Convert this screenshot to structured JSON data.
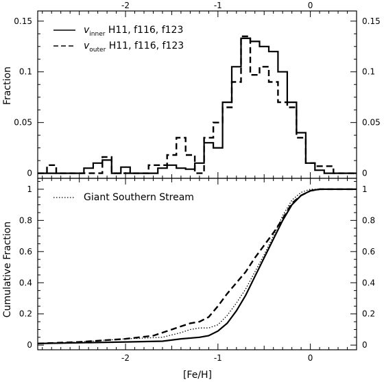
{
  "chart_data": [
    {
      "type": "line",
      "panel": "top",
      "title": "",
      "xlabel": "",
      "ylabel": "Fraction",
      "xlim": [
        -2.95,
        0.5
      ],
      "ylim": [
        -0.005,
        0.16
      ],
      "x_ticks": [
        "-2",
        "-1",
        "0"
      ],
      "x_tick_values": [
        -2,
        -1,
        0
      ],
      "y_ticks": [
        "0",
        "0.05",
        "0.1",
        "0.15"
      ],
      "y_tick_values": [
        0,
        0.05,
        0.1,
        0.15
      ],
      "legend": [
        {
          "sym": "v",
          "sub": "inner",
          "rest": " H11, f116, f123",
          "style": "solid"
        },
        {
          "sym": "v",
          "sub": "outer",
          "rest": " H11, f116, f123",
          "style": "dashed"
        }
      ],
      "series": [
        {
          "name": "v_inner H11, f116, f123",
          "style": "solid",
          "step_x": [
            -2.95,
            -2.85,
            -2.75,
            -2.65,
            -2.55,
            -2.45,
            -2.35,
            -2.25,
            -2.15,
            -2.05,
            -1.95,
            -1.85,
            -1.75,
            -1.65,
            -1.55,
            -1.45,
            -1.35,
            -1.25,
            -1.15,
            -1.05,
            -0.95,
            -0.85,
            -0.75,
            -0.65,
            -0.55,
            -0.45,
            -0.35,
            -0.25,
            -0.15,
            -0.05,
            0.05,
            0.15,
            0.25,
            0.35,
            0.45,
            0.5
          ],
          "values": [
            0,
            0,
            0,
            0,
            0,
            0.005,
            0.01,
            0.013,
            0,
            0.006,
            0,
            0,
            0,
            0.005,
            0.008,
            0.005,
            0.004,
            0.01,
            0.03,
            0.025,
            0.07,
            0.105,
            0.133,
            0.13,
            0.125,
            0.12,
            0.1,
            0.07,
            0.04,
            0.01,
            0.003,
            0,
            0,
            0,
            0
          ]
        },
        {
          "name": "v_outer H11, f116, f123",
          "style": "dashed",
          "step_x": [
            -2.95,
            -2.85,
            -2.75,
            -2.65,
            -2.55,
            -2.45,
            -2.35,
            -2.25,
            -2.15,
            -2.05,
            -1.95,
            -1.85,
            -1.75,
            -1.65,
            -1.55,
            -1.45,
            -1.35,
            -1.25,
            -1.15,
            -1.05,
            -0.95,
            -0.85,
            -0.75,
            -0.65,
            -0.55,
            -0.45,
            -0.35,
            -0.25,
            -0.15,
            -0.05,
            0.05,
            0.15,
            0.25,
            0.35,
            0.45,
            0.5
          ],
          "values": [
            0,
            0.008,
            0,
            0,
            0,
            0,
            0,
            0.016,
            0,
            0,
            0,
            0,
            0.008,
            0.008,
            0.018,
            0.035,
            0.018,
            0,
            0.035,
            0.05,
            0.065,
            0.09,
            0.135,
            0.097,
            0.105,
            0.09,
            0.07,
            0.065,
            0.035,
            0.01,
            0.007,
            0.007,
            0,
            0,
            0
          ]
        }
      ]
    },
    {
      "type": "line",
      "panel": "bottom",
      "title": "",
      "xlabel": "[Fe/H]",
      "ylabel": "Cumulative Fraction",
      "xlim": [
        -2.95,
        0.5
      ],
      "ylim": [
        -0.03,
        1.07
      ],
      "x_ticks": [
        "-2",
        "-1",
        "0"
      ],
      "x_tick_values": [
        -2,
        -1,
        0
      ],
      "y_ticks": [
        "0",
        "0.2",
        "0.4",
        "0.6",
        "0.8",
        "1"
      ],
      "y_tick_values": [
        0,
        0.2,
        0.4,
        0.6,
        0.8,
        1
      ],
      "legend": [
        {
          "label": "Giant Southern Stream",
          "style": "dotted"
        }
      ],
      "series": [
        {
          "name": "v_inner H11, f116, f123",
          "style": "solid",
          "x": [
            -2.95,
            -2.5,
            -2.0,
            -1.6,
            -1.4,
            -1.2,
            -1.1,
            -1.0,
            -0.9,
            -0.8,
            -0.7,
            -0.6,
            -0.5,
            -0.4,
            -0.3,
            -0.2,
            -0.1,
            0.0,
            0.1,
            0.2,
            0.5
          ],
          "y": [
            0.01,
            0.015,
            0.02,
            0.025,
            0.04,
            0.05,
            0.06,
            0.09,
            0.14,
            0.22,
            0.32,
            0.44,
            0.56,
            0.68,
            0.8,
            0.9,
            0.96,
            0.99,
            1.0,
            1.0,
            1.0
          ]
        },
        {
          "name": "v_outer H11, f116, f123",
          "style": "dashed",
          "x": [
            -2.95,
            -2.5,
            -2.0,
            -1.7,
            -1.5,
            -1.4,
            -1.3,
            -1.2,
            -1.1,
            -1.0,
            -0.9,
            -0.8,
            -0.7,
            -0.6,
            -0.5,
            -0.4,
            -0.3,
            -0.2,
            -0.1,
            0.0,
            0.1,
            0.2,
            0.5
          ],
          "y": [
            0.01,
            0.02,
            0.04,
            0.06,
            0.1,
            0.12,
            0.14,
            0.15,
            0.18,
            0.25,
            0.33,
            0.4,
            0.47,
            0.56,
            0.64,
            0.72,
            0.81,
            0.91,
            0.96,
            0.99,
            1.0,
            1.0,
            1.0
          ]
        },
        {
          "name": "Giant Southern Stream",
          "style": "dotted",
          "x": [
            -2.95,
            -2.5,
            -2.0,
            -1.6,
            -1.4,
            -1.3,
            -1.2,
            -1.1,
            -1.0,
            -0.9,
            -0.8,
            -0.7,
            -0.6,
            -0.5,
            -0.4,
            -0.3,
            -0.2,
            -0.1,
            0.0,
            0.1,
            0.5
          ],
          "y": [
            0.01,
            0.02,
            0.04,
            0.05,
            0.08,
            0.1,
            0.11,
            0.11,
            0.13,
            0.19,
            0.27,
            0.36,
            0.47,
            0.58,
            0.7,
            0.83,
            0.93,
            0.98,
            1.0,
            1.0,
            1.0
          ]
        }
      ]
    }
  ]
}
